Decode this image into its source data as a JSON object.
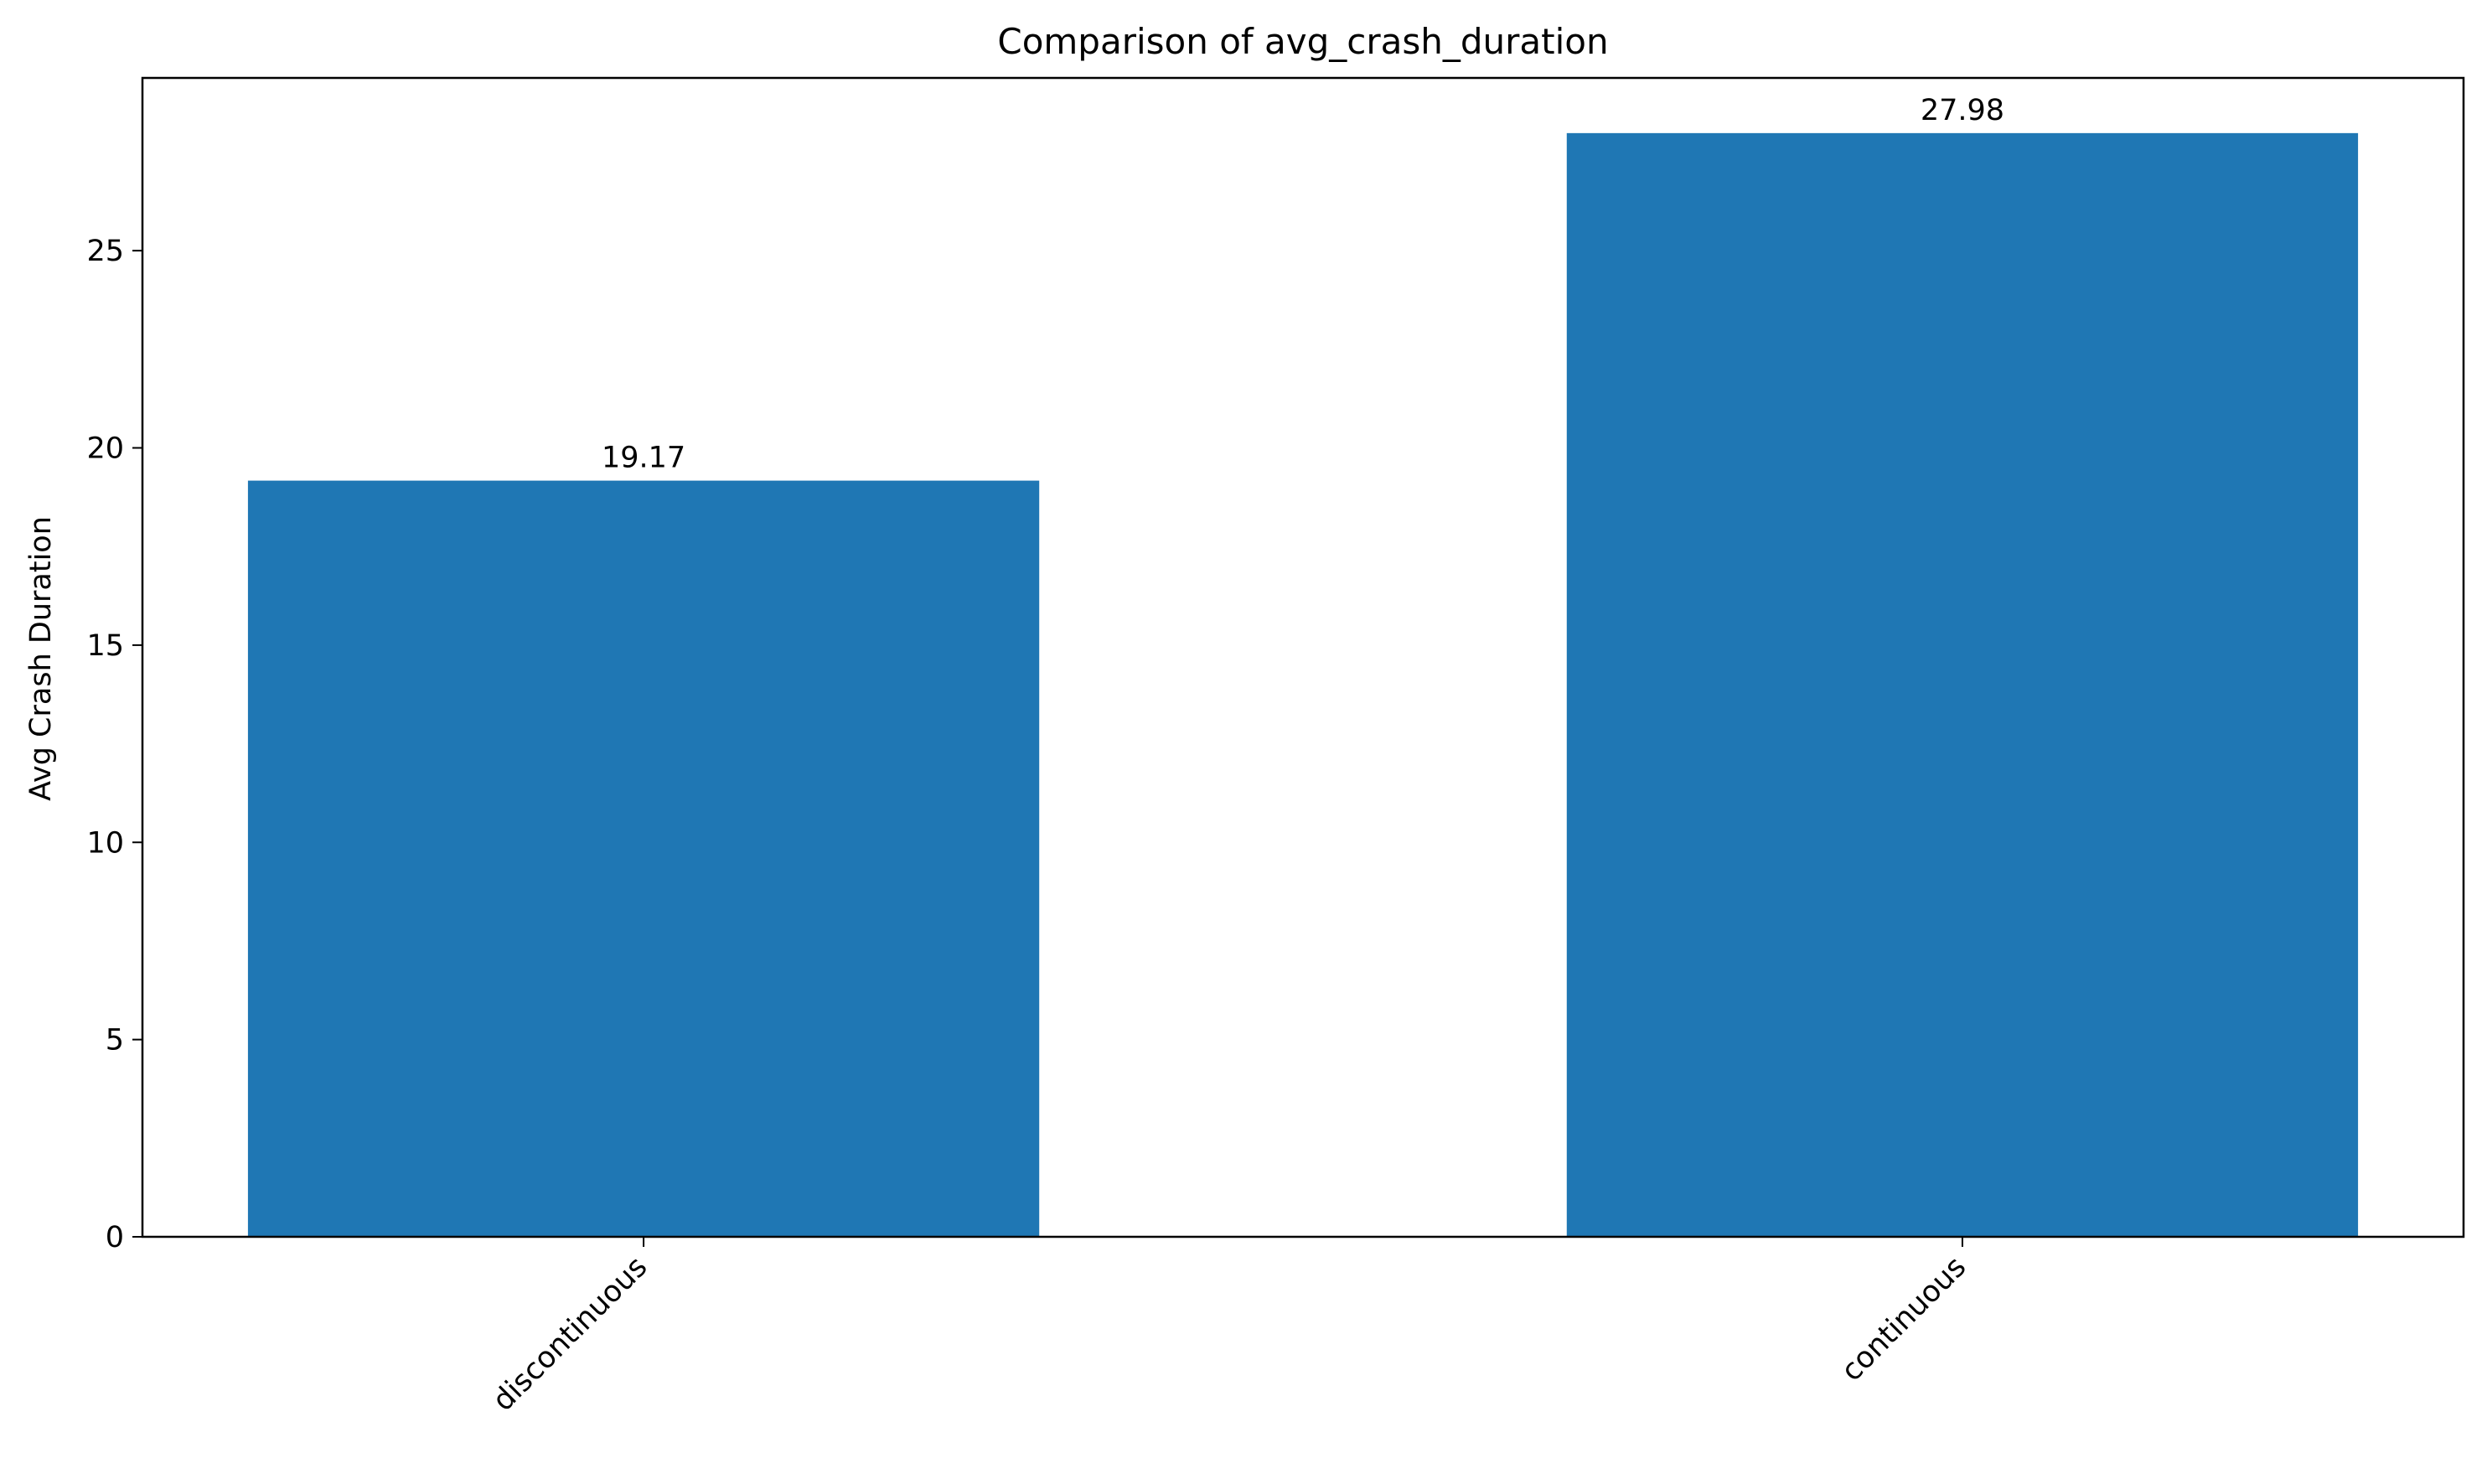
{
  "chart_data": {
    "type": "bar",
    "title": "Comparison of avg_crash_duration",
    "xlabel": "",
    "ylabel": "Avg Crash Duration",
    "categories": [
      "discontinuous",
      "continuous"
    ],
    "values": [
      19.17,
      27.98
    ],
    "value_labels": [
      "19.17",
      "27.98"
    ],
    "ylim": [
      0,
      29.379
    ],
    "yticks": [
      0,
      5,
      10,
      15,
      20,
      25
    ],
    "ytick_labels": [
      "0",
      "5",
      "10",
      "15",
      "20",
      "25"
    ],
    "grid": false,
    "legend": "none",
    "bar_color": "#1f77b4"
  }
}
